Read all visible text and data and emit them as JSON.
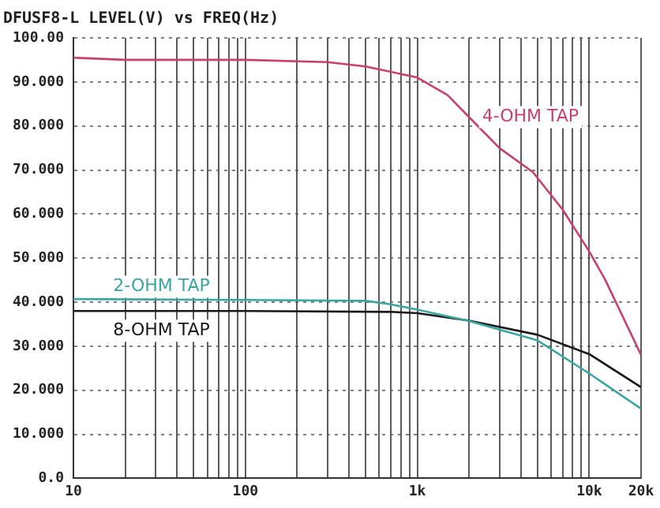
{
  "chart_data": {
    "type": "line",
    "title": "DFUSF8-L LEVEL(V) vs FREQ(Hz)",
    "log": "x",
    "grid": true,
    "legend": false,
    "marker": "none",
    "line_style": "solid",
    "xlim": [
      10,
      20000
    ],
    "ylim": [
      0,
      100
    ],
    "xticks": [
      {
        "value": 10,
        "label": "10"
      },
      {
        "value": 20,
        "label": null
      },
      {
        "value": 30,
        "label": null
      },
      {
        "value": 40,
        "label": null
      },
      {
        "value": 50,
        "label": null
      },
      {
        "value": 60,
        "label": null
      },
      {
        "value": 70,
        "label": null
      },
      {
        "value": 80,
        "label": null
      },
      {
        "value": 90,
        "label": null
      },
      {
        "value": 100,
        "label": "100"
      },
      {
        "value": 200,
        "label": null
      },
      {
        "value": 300,
        "label": null
      },
      {
        "value": 400,
        "label": null
      },
      {
        "value": 500,
        "label": null
      },
      {
        "value": 600,
        "label": null
      },
      {
        "value": 700,
        "label": null
      },
      {
        "value": 800,
        "label": null
      },
      {
        "value": 900,
        "label": null
      },
      {
        "value": 1000,
        "label": "1k"
      },
      {
        "value": 2000,
        "label": null
      },
      {
        "value": 3000,
        "label": null
      },
      {
        "value": 4000,
        "label": null
      },
      {
        "value": 5000,
        "label": null
      },
      {
        "value": 6000,
        "label": null
      },
      {
        "value": 7000,
        "label": null
      },
      {
        "value": 8000,
        "label": null
      },
      {
        "value": 9000,
        "label": null
      },
      {
        "value": 10000,
        "label": "10k"
      },
      {
        "value": 20000,
        "label": "20k"
      }
    ],
    "yticks": [
      {
        "value": 0,
        "label": "0.0"
      },
      {
        "value": 10,
        "label": "10.000"
      },
      {
        "value": 20,
        "label": "20.000"
      },
      {
        "value": 30,
        "label": "30.000"
      },
      {
        "value": 40,
        "label": "40.000"
      },
      {
        "value": 50,
        "label": "50.000"
      },
      {
        "value": 60,
        "label": "60.000"
      },
      {
        "value": 70,
        "label": "70.000"
      },
      {
        "value": 80,
        "label": "80.000"
      },
      {
        "value": 90,
        "label": "90.000"
      },
      {
        "value": 100,
        "label": "100.00"
      }
    ],
    "series": [
      {
        "name": "4-OHM TAP",
        "color": "#c8406e",
        "x": [
          10,
          20,
          100,
          300,
          500,
          1000,
          1500,
          2000,
          3000,
          4700,
          7000,
          10000,
          12400,
          20000
        ],
        "values": [
          95.5,
          95,
          95,
          94.5,
          93.5,
          91,
          87,
          82,
          75,
          69.5,
          61,
          51.5,
          45,
          28
        ]
      },
      {
        "name": "2-OHM TAP",
        "color": "#3aa6a0",
        "x": [
          10,
          100,
          500,
          700,
          1000,
          2000,
          5000,
          10000,
          20000
        ],
        "values": [
          40.7,
          40.5,
          40.3,
          39.5,
          38.3,
          35.7,
          31.3,
          23.8,
          15.8
        ]
      },
      {
        "name": "8-OHM TAP",
        "color": "#1a1a1a",
        "x": [
          10,
          20,
          100,
          700,
          1000,
          2000,
          5000,
          10000,
          20000
        ],
        "values": [
          38,
          38,
          38,
          37.8,
          37.5,
          35.8,
          32.6,
          28.2,
          20.7
        ]
      }
    ]
  }
}
